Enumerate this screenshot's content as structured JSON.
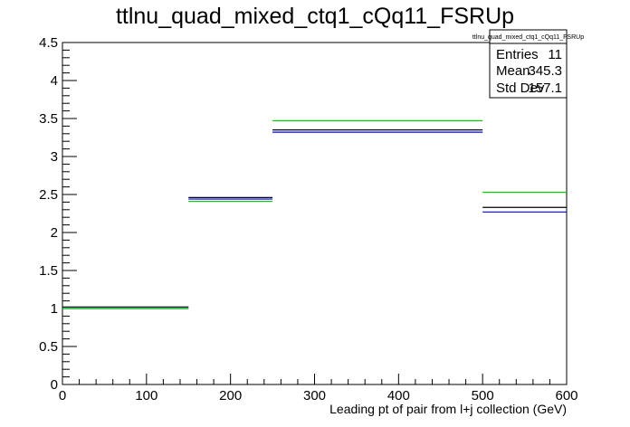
{
  "chart_data": {
    "type": "step-histogram",
    "title": "ttlnu_quad_mixed_ctq1_cQq11_FSRUp",
    "xlabel": "Leading pt of pair from l+j collection (GeV)",
    "ylabel": "",
    "xlim": [
      0,
      600
    ],
    "ylim": [
      0,
      4.5
    ],
    "x_ticks": [
      0,
      100,
      200,
      300,
      400,
      500,
      600
    ],
    "y_ticks": [
      0,
      0.5,
      1,
      1.5,
      2,
      2.5,
      3,
      3.5,
      4,
      4.5
    ],
    "bins": [
      [
        0,
        150
      ],
      [
        150,
        250
      ],
      [
        250,
        500
      ],
      [
        500,
        600
      ]
    ],
    "series": [
      {
        "color": "#000000",
        "values": [
          1.02,
          2.46,
          3.35,
          2.33
        ]
      },
      {
        "color": "#0000ff",
        "values": [
          1.0,
          2.44,
          3.32,
          2.27
        ]
      },
      {
        "color": "#00cc00",
        "values": [
          1.0,
          2.41,
          3.47,
          2.53
        ]
      }
    ],
    "stats_box": {
      "title": "ttlnu_quad_mixed_ctq1_cQq11_FSRUp",
      "rows": [
        {
          "label": "Entries",
          "value": "11"
        },
        {
          "label": "Mean",
          "value": "345.3"
        },
        {
          "label": "Std Dev",
          "value": "157.1"
        }
      ]
    }
  }
}
